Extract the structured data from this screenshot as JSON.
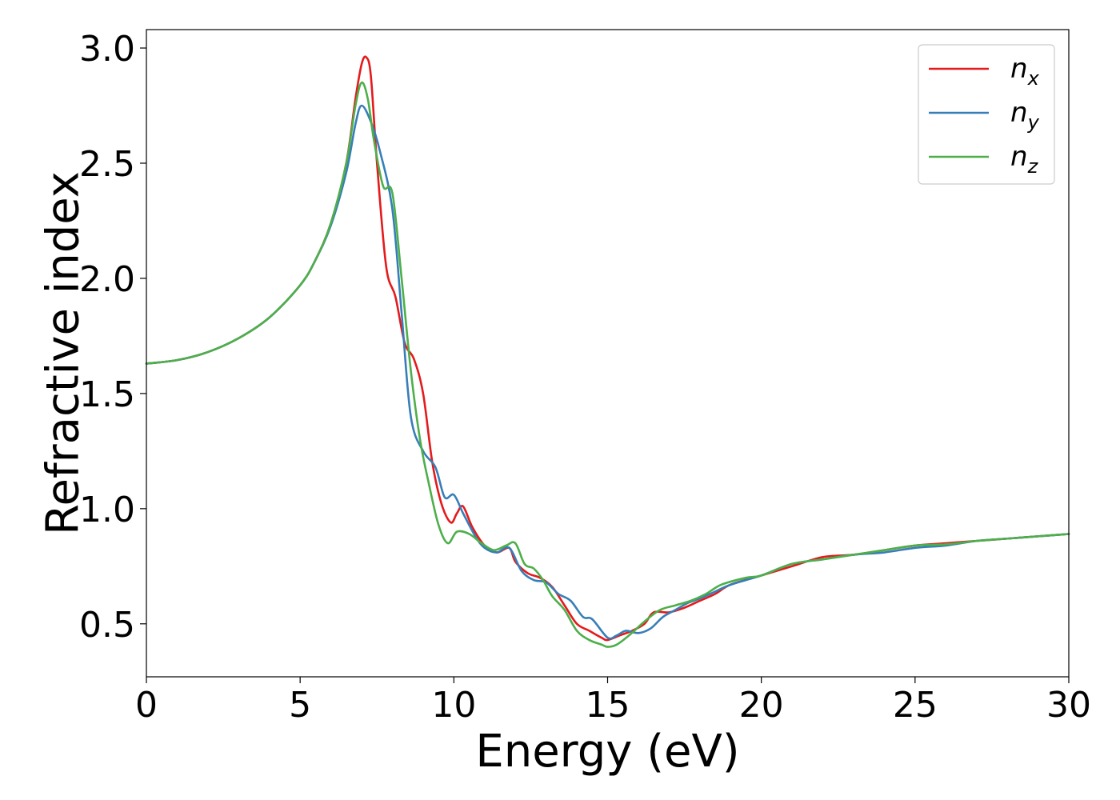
{
  "chart_data": {
    "type": "line",
    "title": "",
    "xlabel": "Energy (eV)",
    "ylabel": "Refractive index",
    "xlim": [
      0,
      30
    ],
    "ylim": [
      0.27,
      3.08
    ],
    "xticks": [
      0,
      5,
      10,
      15,
      20,
      25,
      30
    ],
    "yticks": [
      0.5,
      1.0,
      1.5,
      2.0,
      2.5,
      3.0
    ],
    "xtick_labels": [
      "0",
      "5",
      "10",
      "15",
      "20",
      "25",
      "30"
    ],
    "ytick_labels": [
      "0.5",
      "1.0",
      "1.5",
      "2.0",
      "2.5",
      "3.0"
    ],
    "grid": false,
    "legend_position": "top-right",
    "series": [
      {
        "name": "n_x",
        "label_base": "n",
        "label_sub": "x",
        "color": "#e41a1c",
        "x": [
          0,
          1,
          2,
          3,
          4,
          5,
          5.5,
          6,
          6.5,
          6.8,
          7.0,
          7.15,
          7.3,
          7.5,
          7.8,
          8.1,
          8.4,
          8.7,
          9.0,
          9.3,
          9.6,
          9.9,
          10.1,
          10.3,
          10.6,
          11.0,
          11.4,
          11.8,
          12.0,
          12.4,
          12.8,
          13.2,
          13.6,
          14.0,
          14.4,
          14.8,
          15.0,
          15.4,
          15.8,
          16.2,
          16.5,
          17.0,
          17.5,
          18.0,
          18.5,
          19.0,
          20.0,
          21.0,
          22.0,
          23.0,
          24.0,
          25.0,
          26.0,
          27.0,
          28.0,
          29.0,
          30.0
        ],
        "y": [
          1.63,
          1.645,
          1.68,
          1.74,
          1.83,
          1.97,
          2.08,
          2.24,
          2.5,
          2.78,
          2.93,
          2.96,
          2.88,
          2.5,
          2.05,
          1.92,
          1.72,
          1.65,
          1.5,
          1.2,
          1.02,
          0.94,
          0.98,
          1.01,
          0.92,
          0.84,
          0.81,
          0.83,
          0.77,
          0.72,
          0.7,
          0.66,
          0.58,
          0.5,
          0.47,
          0.44,
          0.43,
          0.45,
          0.47,
          0.5,
          0.55,
          0.55,
          0.57,
          0.6,
          0.63,
          0.67,
          0.71,
          0.75,
          0.79,
          0.8,
          0.82,
          0.84,
          0.85,
          0.86,
          0.87,
          0.88,
          0.89
        ]
      },
      {
        "name": "n_y",
        "label_base": "n",
        "label_sub": "y",
        "color": "#377eb8",
        "x": [
          0,
          1,
          2,
          3,
          4,
          5,
          5.5,
          6,
          6.5,
          6.8,
          7.0,
          7.3,
          7.6,
          8.0,
          8.3,
          8.6,
          9.0,
          9.4,
          9.7,
          10.0,
          10.3,
          10.7,
          11.0,
          11.4,
          11.8,
          12.2,
          12.6,
          13.0,
          13.4,
          13.8,
          14.2,
          14.5,
          15.0,
          15.3,
          15.6,
          16.0,
          16.4,
          16.8,
          17.2,
          17.6,
          18.0,
          18.5,
          19.0,
          20.0,
          21.0,
          22.0,
          23.0,
          24.0,
          25.0,
          26.0,
          27.0,
          28.0,
          29.0,
          30.0
        ],
        "y": [
          1.63,
          1.645,
          1.68,
          1.74,
          1.83,
          1.97,
          2.08,
          2.23,
          2.46,
          2.67,
          2.75,
          2.68,
          2.55,
          2.3,
          1.85,
          1.4,
          1.25,
          1.18,
          1.05,
          1.06,
          0.98,
          0.88,
          0.83,
          0.81,
          0.83,
          0.73,
          0.69,
          0.68,
          0.63,
          0.6,
          0.53,
          0.52,
          0.44,
          0.45,
          0.47,
          0.46,
          0.48,
          0.53,
          0.56,
          0.59,
          0.61,
          0.64,
          0.67,
          0.71,
          0.76,
          0.78,
          0.8,
          0.81,
          0.83,
          0.84,
          0.86,
          0.87,
          0.88,
          0.89
        ]
      },
      {
        "name": "n_z",
        "label_base": "n",
        "label_sub": "z",
        "color": "#4daf4a",
        "x": [
          0,
          1,
          2,
          3,
          4,
          5,
          5.5,
          6,
          6.5,
          6.8,
          7.0,
          7.2,
          7.4,
          7.7,
          8.0,
          8.3,
          8.6,
          8.9,
          9.2,
          9.5,
          9.8,
          10.1,
          10.5,
          10.9,
          11.3,
          11.7,
          12.0,
          12.3,
          12.6,
          12.9,
          13.2,
          13.6,
          14.0,
          14.4,
          14.8,
          15.0,
          15.3,
          15.7,
          16.2,
          16.7,
          17.2,
          17.7,
          18.2,
          18.7,
          19.5,
          20.0,
          21.0,
          22.0,
          23.0,
          24.0,
          25.0,
          26.0,
          27.0,
          28.0,
          29.0,
          30.0
        ],
        "y": [
          1.63,
          1.645,
          1.68,
          1.74,
          1.83,
          1.97,
          2.08,
          2.24,
          2.5,
          2.75,
          2.85,
          2.78,
          2.6,
          2.4,
          2.37,
          2.0,
          1.6,
          1.3,
          1.1,
          0.93,
          0.85,
          0.9,
          0.89,
          0.85,
          0.82,
          0.84,
          0.85,
          0.76,
          0.74,
          0.69,
          0.62,
          0.56,
          0.47,
          0.43,
          0.41,
          0.4,
          0.41,
          0.45,
          0.51,
          0.56,
          0.58,
          0.6,
          0.63,
          0.67,
          0.7,
          0.71,
          0.76,
          0.78,
          0.8,
          0.82,
          0.84,
          0.845,
          0.86,
          0.87,
          0.88,
          0.89
        ]
      }
    ]
  }
}
